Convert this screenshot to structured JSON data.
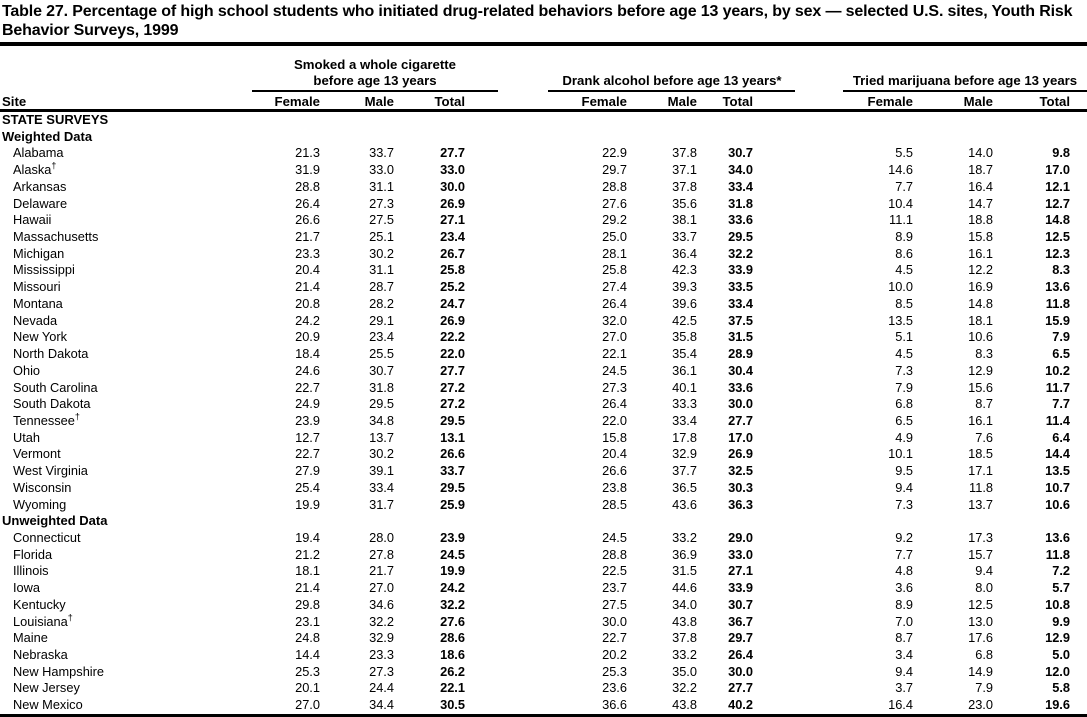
{
  "title": "Table 27. Percentage of high school students who initiated drug-related behaviors before age 13 years, by sex — selected U.S. sites, Youth Risk Behavior Surveys, 1999",
  "header": {
    "site_label": "Site",
    "groups": [
      {
        "label": "Smoked a whole cigarette before age 13 years"
      },
      {
        "label": "Drank alcohol before age 13 years*"
      },
      {
        "label": "Tried marijuana before age 13 years"
      }
    ],
    "sub_columns": [
      "Female",
      "Male",
      "Total"
    ]
  },
  "table": {
    "rows": [
      {
        "type": "section",
        "label": "STATE SURVEYS"
      },
      {
        "type": "section",
        "label": "Weighted Data"
      },
      {
        "type": "data",
        "site": "Alabama",
        "values": [
          "21.3",
          "33.7",
          "27.7",
          "22.9",
          "37.8",
          "30.7",
          "5.5",
          "14.0",
          "9.8"
        ]
      },
      {
        "type": "data",
        "site": "Alaska",
        "mark": "†",
        "values": [
          "31.9",
          "33.0",
          "33.0",
          "29.7",
          "37.1",
          "34.0",
          "14.6",
          "18.7",
          "17.0"
        ]
      },
      {
        "type": "data",
        "site": "Arkansas",
        "values": [
          "28.8",
          "31.1",
          "30.0",
          "28.8",
          "37.8",
          "33.4",
          "7.7",
          "16.4",
          "12.1"
        ]
      },
      {
        "type": "data",
        "site": "Delaware",
        "values": [
          "26.4",
          "27.3",
          "26.9",
          "27.6",
          "35.6",
          "31.8",
          "10.4",
          "14.7",
          "12.7"
        ]
      },
      {
        "type": "data",
        "site": "Hawaii",
        "values": [
          "26.6",
          "27.5",
          "27.1",
          "29.2",
          "38.1",
          "33.6",
          "11.1",
          "18.8",
          "14.8"
        ]
      },
      {
        "type": "data",
        "site": "Massachusetts",
        "values": [
          "21.7",
          "25.1",
          "23.4",
          "25.0",
          "33.7",
          "29.5",
          "8.9",
          "15.8",
          "12.5"
        ]
      },
      {
        "type": "data",
        "site": "Michigan",
        "values": [
          "23.3",
          "30.2",
          "26.7",
          "28.1",
          "36.4",
          "32.2",
          "8.6",
          "16.1",
          "12.3"
        ]
      },
      {
        "type": "data",
        "site": "Mississippi",
        "values": [
          "20.4",
          "31.1",
          "25.8",
          "25.8",
          "42.3",
          "33.9",
          "4.5",
          "12.2",
          "8.3"
        ]
      },
      {
        "type": "data",
        "site": "Missouri",
        "values": [
          "21.4",
          "28.7",
          "25.2",
          "27.4",
          "39.3",
          "33.5",
          "10.0",
          "16.9",
          "13.6"
        ]
      },
      {
        "type": "data",
        "site": "Montana",
        "values": [
          "20.8",
          "28.2",
          "24.7",
          "26.4",
          "39.6",
          "33.4",
          "8.5",
          "14.8",
          "11.8"
        ]
      },
      {
        "type": "data",
        "site": "Nevada",
        "values": [
          "24.2",
          "29.1",
          "26.9",
          "32.0",
          "42.5",
          "37.5",
          "13.5",
          "18.1",
          "15.9"
        ]
      },
      {
        "type": "data",
        "site": "New York",
        "values": [
          "20.9",
          "23.4",
          "22.2",
          "27.0",
          "35.8",
          "31.5",
          "5.1",
          "10.6",
          "7.9"
        ]
      },
      {
        "type": "data",
        "site": "North Dakota",
        "values": [
          "18.4",
          "25.5",
          "22.0",
          "22.1",
          "35.4",
          "28.9",
          "4.5",
          "8.3",
          "6.5"
        ]
      },
      {
        "type": "data",
        "site": "Ohio",
        "values": [
          "24.6",
          "30.7",
          "27.7",
          "24.5",
          "36.1",
          "30.4",
          "7.3",
          "12.9",
          "10.2"
        ]
      },
      {
        "type": "data",
        "site": "South Carolina",
        "values": [
          "22.7",
          "31.8",
          "27.2",
          "27.3",
          "40.1",
          "33.6",
          "7.9",
          "15.6",
          "11.7"
        ]
      },
      {
        "type": "data",
        "site": "South Dakota",
        "values": [
          "24.9",
          "29.5",
          "27.2",
          "26.4",
          "33.3",
          "30.0",
          "6.8",
          "8.7",
          "7.7"
        ]
      },
      {
        "type": "data",
        "site": "Tennessee",
        "mark": "†",
        "values": [
          "23.9",
          "34.8",
          "29.5",
          "22.0",
          "33.4",
          "27.7",
          "6.5",
          "16.1",
          "11.4"
        ]
      },
      {
        "type": "data",
        "site": "Utah",
        "values": [
          "12.7",
          "13.7",
          "13.1",
          "15.8",
          "17.8",
          "17.0",
          "4.9",
          "7.6",
          "6.4"
        ]
      },
      {
        "type": "data",
        "site": "Vermont",
        "values": [
          "22.7",
          "30.2",
          "26.6",
          "20.4",
          "32.9",
          "26.9",
          "10.1",
          "18.5",
          "14.4"
        ]
      },
      {
        "type": "data",
        "site": "West Virginia",
        "values": [
          "27.9",
          "39.1",
          "33.7",
          "26.6",
          "37.7",
          "32.5",
          "9.5",
          "17.1",
          "13.5"
        ]
      },
      {
        "type": "data",
        "site": "Wisconsin",
        "values": [
          "25.4",
          "33.4",
          "29.5",
          "23.8",
          "36.5",
          "30.3",
          "9.4",
          "11.8",
          "10.7"
        ]
      },
      {
        "type": "data",
        "site": "Wyoming",
        "values": [
          "19.9",
          "31.7",
          "25.9",
          "28.5",
          "43.6",
          "36.3",
          "7.3",
          "13.7",
          "10.6"
        ]
      },
      {
        "type": "section",
        "label": "Unweighted Data"
      },
      {
        "type": "data",
        "site": "Connecticut",
        "values": [
          "19.4",
          "28.0",
          "23.9",
          "24.5",
          "33.2",
          "29.0",
          "9.2",
          "17.3",
          "13.6"
        ]
      },
      {
        "type": "data",
        "site": "Florida",
        "values": [
          "21.2",
          "27.8",
          "24.5",
          "28.8",
          "36.9",
          "33.0",
          "7.7",
          "15.7",
          "11.8"
        ]
      },
      {
        "type": "data",
        "site": "Illinois",
        "values": [
          "18.1",
          "21.7",
          "19.9",
          "22.5",
          "31.5",
          "27.1",
          "4.8",
          "9.4",
          "7.2"
        ]
      },
      {
        "type": "data",
        "site": "Iowa",
        "values": [
          "21.4",
          "27.0",
          "24.2",
          "23.7",
          "44.6",
          "33.9",
          "3.6",
          "8.0",
          "5.7"
        ]
      },
      {
        "type": "data",
        "site": "Kentucky",
        "values": [
          "29.8",
          "34.6",
          "32.2",
          "27.5",
          "34.0",
          "30.7",
          "8.9",
          "12.5",
          "10.8"
        ]
      },
      {
        "type": "data",
        "site": "Louisiana",
        "mark": "†",
        "values": [
          "23.1",
          "32.2",
          "27.6",
          "30.0",
          "43.8",
          "36.7",
          "7.0",
          "13.0",
          "9.9"
        ]
      },
      {
        "type": "data",
        "site": "Maine",
        "values": [
          "24.8",
          "32.9",
          "28.6",
          "22.7",
          "37.8",
          "29.7",
          "8.7",
          "17.6",
          "12.9"
        ]
      },
      {
        "type": "data",
        "site": "Nebraska",
        "values": [
          "14.4",
          "23.3",
          "18.6",
          "20.2",
          "33.2",
          "26.4",
          "3.4",
          "6.8",
          "5.0"
        ]
      },
      {
        "type": "data",
        "site": "New Hampshire",
        "values": [
          "25.3",
          "27.3",
          "26.2",
          "25.3",
          "35.0",
          "30.0",
          "9.4",
          "14.9",
          "12.0"
        ]
      },
      {
        "type": "data",
        "site": "New Jersey",
        "values": [
          "20.1",
          "24.4",
          "22.1",
          "23.6",
          "32.2",
          "27.7",
          "3.7",
          "7.9",
          "5.8"
        ]
      },
      {
        "type": "data",
        "site": "New Mexico",
        "values": [
          "27.0",
          "34.4",
          "30.5",
          "36.6",
          "43.8",
          "40.2",
          "16.4",
          "23.0",
          "19.6"
        ]
      }
    ]
  }
}
